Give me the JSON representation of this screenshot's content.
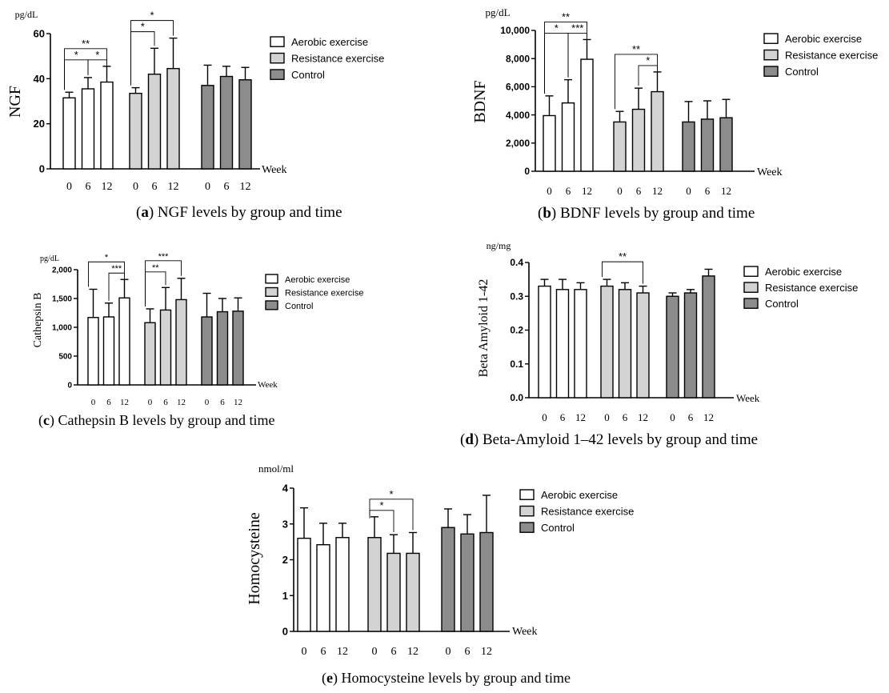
{
  "colors": {
    "aerobic": "#ffffff",
    "resistance": "#d3d3d3",
    "control": "#8c8c8c",
    "line": "#000000"
  },
  "legend_labels": [
    "Aerobic exercise",
    "Resistance exercise",
    "Control"
  ],
  "x_tick_labels": [
    "0",
    "6",
    "12"
  ],
  "chart_data": [
    {
      "panel": "a",
      "type": "bar",
      "caption_letter": "a",
      "caption_text": "NGF levels by group and time",
      "unit": "pg/dL",
      "ylabel": "NGF",
      "xlabel": "Week",
      "ylim": [
        0,
        60
      ],
      "yticks": [
        0,
        20,
        40,
        60
      ],
      "ytick_labels": [
        "0",
        "20",
        "40",
        "60"
      ],
      "groups": [
        "Aerobic exercise",
        "Resistance exercise",
        "Control"
      ],
      "series": [
        {
          "name": "Aerobic exercise",
          "x": [
            "0",
            "6",
            "12"
          ],
          "values": [
            31.5,
            35.5,
            38.5
          ],
          "error": [
            2.5,
            5,
            7
          ]
        },
        {
          "name": "Resistance exercise",
          "x": [
            "0",
            "6",
            "12"
          ],
          "values": [
            33.5,
            42,
            44.5
          ],
          "error": [
            2.5,
            11.5,
            13.5
          ]
        },
        {
          "name": "Control",
          "x": [
            "0",
            "6",
            "12"
          ],
          "values": [
            37,
            41,
            39.5
          ],
          "error": [
            9,
            4.5,
            5.5
          ]
        }
      ],
      "annotations": [
        {
          "group": 0,
          "from": 0,
          "to": 2,
          "label": "**"
        },
        {
          "group": 0,
          "from": 0,
          "to": 1,
          "label": "*"
        },
        {
          "group": 0,
          "from": 1,
          "to": 2,
          "label": "*"
        },
        {
          "group": 1,
          "from": 0,
          "to": 2,
          "label": "*"
        },
        {
          "group": 1,
          "from": 0,
          "to": 1,
          "label": "*"
        }
      ]
    },
    {
      "panel": "b",
      "type": "bar",
      "caption_letter": "b",
      "caption_text": "BDNF levels by group and time",
      "unit": "pg/dL",
      "ylabel": "BDNF",
      "xlabel": "Week",
      "ylim": [
        0,
        10000
      ],
      "yticks": [
        0,
        2000,
        4000,
        6000,
        8000,
        10000
      ],
      "ytick_labels": [
        "0",
        "2,000",
        "4,000",
        "6,000",
        "8,000",
        "10,000"
      ],
      "groups": [
        "Aerobic exercise",
        "Resistance exercise",
        "Control"
      ],
      "series": [
        {
          "name": "Aerobic exercise",
          "x": [
            "0",
            "6",
            "12"
          ],
          "values": [
            3950,
            4850,
            7950
          ],
          "error": [
            1400,
            1650,
            1400
          ]
        },
        {
          "name": "Resistance exercise",
          "x": [
            "0",
            "6",
            "12"
          ],
          "values": [
            3500,
            4400,
            5650
          ],
          "error": [
            750,
            1500,
            1400
          ]
        },
        {
          "name": "Control",
          "x": [
            "0",
            "6",
            "12"
          ],
          "values": [
            3500,
            3700,
            3800
          ],
          "error": [
            1450,
            1300,
            1300
          ]
        }
      ],
      "annotations": [
        {
          "group": 0,
          "from": 0,
          "to": 2,
          "label": "**"
        },
        {
          "group": 0,
          "from": 0,
          "to": 1,
          "label": "*"
        },
        {
          "group": 0,
          "from": 1,
          "to": 2,
          "label": "***"
        },
        {
          "group": 1,
          "from": 0,
          "to": 2,
          "label": "**"
        },
        {
          "group": 1,
          "from": 1,
          "to": 2,
          "label": "*"
        }
      ]
    },
    {
      "panel": "c",
      "type": "bar",
      "caption_letter": "c",
      "caption_text": "Cathepsin B levels by group and time",
      "unit": "pg/dL",
      "ylabel": "Cathepsin B",
      "xlabel": "Week",
      "ylim": [
        0,
        2000
      ],
      "yticks": [
        0,
        500,
        1000,
        1500,
        2000
      ],
      "ytick_labels": [
        "0",
        "500",
        "1,000",
        "1,500",
        "2,000"
      ],
      "groups": [
        "Aerobic exercise",
        "Resistance exercise",
        "Control"
      ],
      "series": [
        {
          "name": "Aerobic exercise",
          "x": [
            "0",
            "6",
            "12"
          ],
          "values": [
            1170,
            1180,
            1510
          ],
          "error": [
            490,
            240,
            320
          ]
        },
        {
          "name": "Resistance exercise",
          "x": [
            "0",
            "6",
            "12"
          ],
          "values": [
            1080,
            1300,
            1480
          ],
          "error": [
            240,
            390,
            370
          ]
        },
        {
          "name": "Control",
          "x": [
            "0",
            "6",
            "12"
          ],
          "values": [
            1180,
            1270,
            1280
          ],
          "error": [
            410,
            230,
            230
          ]
        }
      ],
      "annotations": [
        {
          "group": 0,
          "from": 0,
          "to": 2,
          "label": "*"
        },
        {
          "group": 0,
          "from": 1,
          "to": 2,
          "label": "***"
        },
        {
          "group": 1,
          "from": 0,
          "to": 2,
          "label": "***"
        },
        {
          "group": 1,
          "from": 0,
          "to": 1,
          "label": "**"
        }
      ]
    },
    {
      "panel": "d",
      "type": "bar",
      "caption_letter": "d",
      "caption_text": "Beta-Amyloid 1–42 levels by group and time",
      "unit": "ng/mg",
      "ylabel": "Beta Amyloid 1-42",
      "xlabel": "Week",
      "ylim": [
        0,
        0.4
      ],
      "yticks": [
        0,
        0.1,
        0.2,
        0.3,
        0.4
      ],
      "ytick_labels": [
        "0.0",
        "0.1",
        "0.2",
        "0.3",
        "0.4"
      ],
      "groups": [
        "Aerobic exercise",
        "Resistance exercise",
        "Control"
      ],
      "series": [
        {
          "name": "Aerobic exercise",
          "x": [
            "0",
            "6",
            "12"
          ],
          "values": [
            0.33,
            0.32,
            0.32
          ],
          "error": [
            0.02,
            0.03,
            0.02
          ]
        },
        {
          "name": "Resistance exercise",
          "x": [
            "0",
            "6",
            "12"
          ],
          "values": [
            0.33,
            0.32,
            0.31
          ],
          "error": [
            0.02,
            0.02,
            0.02
          ]
        },
        {
          "name": "Control",
          "x": [
            "0",
            "6",
            "12"
          ],
          "values": [
            0.3,
            0.31,
            0.36
          ],
          "error": [
            0.01,
            0.01,
            0.02
          ]
        }
      ],
      "annotations": [
        {
          "group": 1,
          "from": 0,
          "to": 2,
          "label": "**"
        }
      ]
    },
    {
      "panel": "e",
      "type": "bar",
      "caption_letter": "e",
      "caption_text": "Homocysteine levels by group and time",
      "unit": "nmol/ml",
      "ylabel": "Homocysteine",
      "xlabel": "Week",
      "ylim": [
        0,
        4
      ],
      "yticks": [
        0,
        1,
        2,
        3,
        4
      ],
      "ytick_labels": [
        "0",
        "1",
        "2",
        "3",
        "4"
      ],
      "groups": [
        "Aerobic exercise",
        "Resistance exercise",
        "Control"
      ],
      "series": [
        {
          "name": "Aerobic exercise",
          "x": [
            "0",
            "6",
            "12"
          ],
          "values": [
            2.6,
            2.42,
            2.62
          ],
          "error": [
            0.85,
            0.6,
            0.4
          ]
        },
        {
          "name": "Resistance exercise",
          "x": [
            "0",
            "6",
            "12"
          ],
          "values": [
            2.62,
            2.18,
            2.18
          ],
          "error": [
            0.58,
            0.52,
            0.58
          ]
        },
        {
          "name": "Control",
          "x": [
            "0",
            "6",
            "12"
          ],
          "values": [
            2.9,
            2.72,
            2.76
          ],
          "error": [
            0.52,
            0.54,
            1.04
          ]
        }
      ],
      "annotations": [
        {
          "group": 1,
          "from": 0,
          "to": 2,
          "label": "*"
        },
        {
          "group": 1,
          "from": 0,
          "to": 1,
          "label": "*"
        }
      ]
    }
  ]
}
